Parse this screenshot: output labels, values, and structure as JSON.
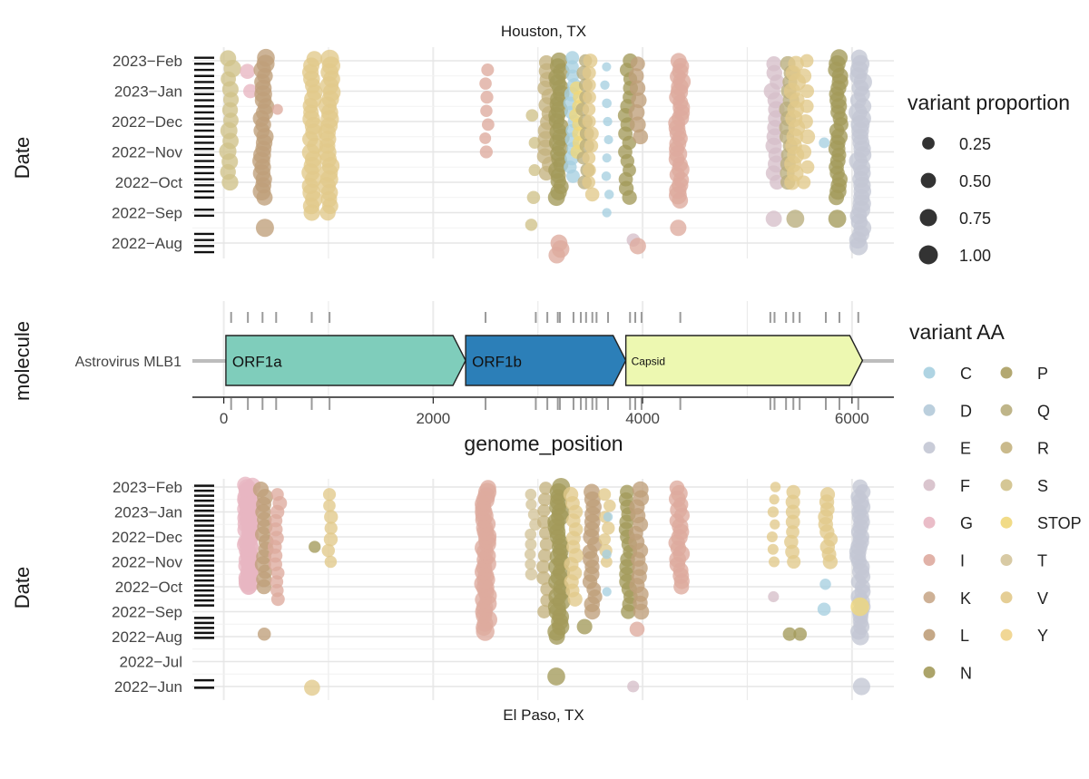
{
  "panels": [
    {
      "id": "houston",
      "title": "Houston, TX",
      "ylabel": "Date",
      "y_ticks": [
        {
          "label": "2022−Aug",
          "value": 0
        },
        {
          "label": "2022−Sep",
          "value": 1
        },
        {
          "label": "2022−Oct",
          "value": 2
        },
        {
          "label": "2022−Nov",
          "value": 3
        },
        {
          "label": "2022−Dec",
          "value": 4
        },
        {
          "label": "2023−Jan",
          "value": 5
        },
        {
          "label": "2023−Feb",
          "value": 6
        }
      ]
    },
    {
      "id": "elpaso",
      "title": "El Paso, TX",
      "ylabel": "Date",
      "y_ticks": [
        {
          "label": "2022−Jun",
          "value": 0
        },
        {
          "label": "2022−Jul",
          "value": 1
        },
        {
          "label": "2022−Aug",
          "value": 2
        },
        {
          "label": "2022−Sep",
          "value": 3
        },
        {
          "label": "2022−Oct",
          "value": 4
        },
        {
          "label": "2022−Nov",
          "value": 5
        },
        {
          "label": "2022−Dec",
          "value": 6
        },
        {
          "label": "2023−Jan",
          "value": 7
        },
        {
          "label": "2023−Feb",
          "value": 8
        }
      ]
    }
  ],
  "genome_track": {
    "ylabel": "molecule",
    "molecule": "Astrovirus MLB1",
    "xlabel": "genome_position",
    "x_ticks": [
      0,
      2000,
      4000,
      6000
    ],
    "x_range": [
      -300,
      6400
    ],
    "genes": [
      {
        "name": "ORF1a",
        "start": 20,
        "end": 2310,
        "color": "#7fcdbb"
      },
      {
        "name": "ORF1b",
        "start": 2310,
        "end": 3840,
        "color": "#2c7fb8"
      },
      {
        "name": "Capsid",
        "start": 3840,
        "end": 6100,
        "color": "#edf8b1"
      }
    ],
    "variant_positions": [
      70,
      230,
      370,
      500,
      840,
      1010,
      2500,
      2980,
      3090,
      3190,
      3210,
      3340,
      3410,
      3460,
      3520,
      3560,
      3670,
      3880,
      3930,
      3990,
      4360,
      5220,
      5260,
      5370,
      5440,
      5500,
      5750,
      5880,
      6060
    ]
  },
  "legend": {
    "size_title": "variant proportion",
    "size_items": [
      {
        "label": "0.25",
        "value": 0.25
      },
      {
        "label": "0.50",
        "value": 0.5
      },
      {
        "label": "0.75",
        "value": 0.75
      },
      {
        "label": "1.00",
        "value": 1.0
      }
    ],
    "color_title": "variant AA",
    "color_items": [
      {
        "label": "C",
        "color": "#a6cfe0"
      },
      {
        "label": "D",
        "color": "#b4cad9"
      },
      {
        "label": "E",
        "color": "#c3c6d4"
      },
      {
        "label": "F",
        "color": "#d6bfc9"
      },
      {
        "label": "G",
        "color": "#e8b6c2"
      },
      {
        "label": "I",
        "color": "#deaa9e"
      },
      {
        "label": "K",
        "color": "#c9a98b"
      },
      {
        "label": "L",
        "color": "#bf9f7a"
      },
      {
        "label": "N",
        "color": "#a39a5a"
      },
      {
        "label": "P",
        "color": "#ab9f62"
      },
      {
        "label": "Q",
        "color": "#b8ad7c"
      },
      {
        "label": "R",
        "color": "#c4b27f"
      },
      {
        "label": "S",
        "color": "#d0c189"
      },
      {
        "label": "STOP",
        "color": "#f0d77a"
      },
      {
        "label": "T",
        "color": "#d4c49a"
      },
      {
        "label": "V",
        "color": "#e2c98a"
      },
      {
        "label": "Y",
        "color": "#f0d389"
      }
    ]
  },
  "chart_data": {
    "type": "scatter",
    "title": "",
    "xlabel": "genome_position",
    "xlim": [
      -300,
      6400
    ],
    "facets": [
      {
        "name": "Houston, TX",
        "ylabel": "Date",
        "ylim": [
          -0.5,
          6.5
        ],
        "sample_dates": [
          -0.3,
          -0.1,
          0.1,
          0.3,
          0.9,
          1.1,
          1.5,
          1.7,
          1.9,
          2.1,
          2.3,
          2.5,
          2.7,
          2.9,
          3.1,
          3.3,
          3.5,
          3.7,
          3.9,
          4.1,
          4.3,
          4.5,
          4.7,
          4.9,
          5.1,
          5.3,
          5.5,
          5.7,
          5.9,
          6.1
        ],
        "columns": [
          {
            "x": 60,
            "aa": "S",
            "ymin": 2.0,
            "ymax": 6.1,
            "step": 0.34,
            "size": 0.55
          },
          {
            "x": 230,
            "aa": "G",
            "ymin": 5.0,
            "ymax": 5.7,
            "step": 0.65,
            "size": 0.4
          },
          {
            "x": 380,
            "aa": "L",
            "ymin": 1.5,
            "ymax": 6.1,
            "step": 0.2,
            "size": 0.6
          },
          {
            "x": 380,
            "aa": "L",
            "ymin": 0.5,
            "ymax": 0.5,
            "step": 1,
            "size": 0.7
          },
          {
            "x": 510,
            "aa": "I",
            "ymin": 4.4,
            "ymax": 4.4,
            "step": 1,
            "size": 0.15
          },
          {
            "x": 850,
            "aa": "V",
            "ymin": 1.0,
            "ymax": 6.1,
            "step": 0.22,
            "size": 0.6
          },
          {
            "x": 1010,
            "aa": "V",
            "ymin": 1.0,
            "ymax": 6.1,
            "step": 0.22,
            "size": 0.65
          },
          {
            "x": 2500,
            "aa": "I",
            "ymin": 3.0,
            "ymax": 5.9,
            "step": 0.45,
            "size": 0.2
          },
          {
            "x": 2960,
            "aa": "S",
            "ymin": 0.6,
            "ymax": 5.0,
            "step": 0.9,
            "size": 0.2
          },
          {
            "x": 3090,
            "aa": "R",
            "ymin": 2.3,
            "ymax": 6.1,
            "step": 0.28,
            "size": 0.5
          },
          {
            "x": 3200,
            "aa": "N",
            "ymin": 1.5,
            "ymax": 6.1,
            "step": 0.18,
            "size": 0.55
          },
          {
            "x": 3200,
            "aa": "I",
            "ymin": -0.4,
            "ymax": 0.0,
            "step": 0.2,
            "size": 0.6
          },
          {
            "x": 3330,
            "aa": "C",
            "ymin": 2.2,
            "ymax": 6.1,
            "step": 0.3,
            "size": 0.3
          },
          {
            "x": 3390,
            "aa": "STOP",
            "ymin": 3.0,
            "ymax": 5.2,
            "step": 0.3,
            "size": 0.3
          },
          {
            "x": 3450,
            "aa": "Q",
            "ymin": 2.0,
            "ymax": 6.0,
            "step": 0.4,
            "size": 0.3
          },
          {
            "x": 3510,
            "aa": "V",
            "ymin": 1.6,
            "ymax": 6.0,
            "step": 0.4,
            "size": 0.3
          },
          {
            "x": 3660,
            "aa": "C",
            "ymin": 1.0,
            "ymax": 6.1,
            "step": 0.6,
            "size": 0.05
          },
          {
            "x": 3860,
            "aa": "N",
            "ymin": 1.5,
            "ymax": 6.1,
            "step": 0.3,
            "size": 0.35
          },
          {
            "x": 3960,
            "aa": "L",
            "ymin": 3.5,
            "ymax": 6.1,
            "step": 0.4,
            "size": 0.45
          },
          {
            "x": 3910,
            "aa": "F",
            "ymin": 0.1,
            "ymax": 0.1,
            "step": 1,
            "size": 0.3
          },
          {
            "x": 3980,
            "aa": "I",
            "ymin": -0.1,
            "ymax": -0.1,
            "step": 1,
            "size": 0.45
          },
          {
            "x": 4350,
            "aa": "I",
            "ymin": 1.4,
            "ymax": 6.1,
            "step": 0.17,
            "size": 0.6
          },
          {
            "x": 4350,
            "aa": "I",
            "ymin": 0.5,
            "ymax": 0.5,
            "step": 1,
            "size": 0.45
          },
          {
            "x": 5260,
            "aa": "F",
            "ymin": 2.0,
            "ymax": 6.1,
            "step": 0.3,
            "size": 0.5
          },
          {
            "x": 5260,
            "aa": "F",
            "ymin": 0.8,
            "ymax": 0.8,
            "step": 1,
            "size": 0.6
          },
          {
            "x": 5400,
            "aa": "Q",
            "ymin": 2.0,
            "ymax": 6.1,
            "step": 0.3,
            "size": 0.45
          },
          {
            "x": 5450,
            "aa": "V",
            "ymin": 2.0,
            "ymax": 6.1,
            "step": 0.3,
            "size": 0.55
          },
          {
            "x": 5450,
            "aa": "Q",
            "ymin": 0.8,
            "ymax": 0.8,
            "step": 1,
            "size": 0.6
          },
          {
            "x": 5560,
            "aa": "V",
            "ymin": 2.0,
            "ymax": 6.0,
            "step": 0.5,
            "size": 0.35
          },
          {
            "x": 5750,
            "aa": "C",
            "ymin": 3.3,
            "ymax": 3.3,
            "step": 1,
            "size": 0.1
          },
          {
            "x": 5870,
            "aa": "N",
            "ymin": 1.5,
            "ymax": 6.1,
            "step": 0.2,
            "size": 0.5
          },
          {
            "x": 5850,
            "aa": "N",
            "ymin": 0.8,
            "ymax": 0.8,
            "step": 1,
            "size": 0.6
          },
          {
            "x": 6080,
            "aa": "E",
            "ymin": -0.1,
            "ymax": 6.1,
            "step": 0.2,
            "size": 0.7
          }
        ]
      },
      {
        "name": "El Paso, TX",
        "ylabel": "Date",
        "ylim": [
          -0.5,
          8.5
        ],
        "sample_dates": [
          -0.05,
          0.25,
          1.95,
          2.15,
          2.35,
          2.55,
          2.75,
          3.25,
          3.45,
          3.65,
          3.85,
          4.05,
          4.25,
          4.45,
          4.65,
          4.85,
          5.05,
          5.25,
          5.45,
          5.65,
          5.85,
          6.05,
          6.25,
          6.45,
          6.65,
          6.85,
          7.05,
          7.25,
          7.45,
          7.65,
          7.85,
          8.05
        ],
        "columns": [
          {
            "x": 230,
            "aa": "G",
            "ymin": 4.0,
            "ymax": 8.1,
            "step": 0.12,
            "size": 0.6
          },
          {
            "x": 250,
            "aa": "G",
            "ymin": 4.0,
            "ymax": 8.1,
            "step": 0.15,
            "size": 0.45
          },
          {
            "x": 380,
            "aa": "L",
            "ymin": 4.0,
            "ymax": 8.1,
            "step": 0.3,
            "size": 0.45
          },
          {
            "x": 380,
            "aa": "L",
            "ymin": 2.1,
            "ymax": 2.1,
            "step": 1,
            "size": 0.25
          },
          {
            "x": 510,
            "aa": "I",
            "ymin": 3.5,
            "ymax": 8.0,
            "step": 0.35,
            "size": 0.3
          },
          {
            "x": 850,
            "aa": "N",
            "ymin": 5.6,
            "ymax": 5.6,
            "step": 1,
            "size": 0.2
          },
          {
            "x": 1010,
            "aa": "V",
            "ymin": 5.0,
            "ymax": 8.1,
            "step": 0.45,
            "size": 0.25
          },
          {
            "x": 850,
            "aa": "V",
            "ymin": -0.05,
            "ymax": -0.05,
            "step": 1,
            "size": 0.45
          },
          {
            "x": 2500,
            "aa": "I",
            "ymin": 2.2,
            "ymax": 8.1,
            "step": 0.16,
            "size": 0.65
          },
          {
            "x": 2950,
            "aa": "T",
            "ymin": 4.5,
            "ymax": 8.0,
            "step": 0.4,
            "size": 0.15
          },
          {
            "x": 3070,
            "aa": "R",
            "ymin": 3.0,
            "ymax": 8.0,
            "step": 0.45,
            "size": 0.25
          },
          {
            "x": 3200,
            "aa": "N",
            "ymin": 2.0,
            "ymax": 8.0,
            "step": 0.2,
            "size": 0.6
          },
          {
            "x": 3200,
            "aa": "N",
            "ymin": 0.4,
            "ymax": 0.4,
            "step": 1,
            "size": 0.7
          },
          {
            "x": 3340,
            "aa": "V",
            "ymin": 3.5,
            "ymax": 8.0,
            "step": 0.35,
            "size": 0.35
          },
          {
            "x": 3440,
            "aa": "N",
            "ymin": 2.4,
            "ymax": 2.4,
            "step": 1,
            "size": 0.45
          },
          {
            "x": 3520,
            "aa": "L",
            "ymin": 3.0,
            "ymax": 8.0,
            "step": 0.3,
            "size": 0.45
          },
          {
            "x": 3660,
            "aa": "V",
            "ymin": 5.0,
            "ymax": 8.0,
            "step": 0.45,
            "size": 0.2
          },
          {
            "x": 3660,
            "aa": "C",
            "ymin": 3.8,
            "ymax": 7.0,
            "step": 1.5,
            "size": 0.05
          },
          {
            "x": 3860,
            "aa": "N",
            "ymin": 3.0,
            "ymax": 8.0,
            "step": 0.3,
            "size": 0.4
          },
          {
            "x": 3960,
            "aa": "L",
            "ymin": 3.0,
            "ymax": 8.0,
            "step": 0.35,
            "size": 0.45
          },
          {
            "x": 3950,
            "aa": "I",
            "ymin": 2.3,
            "ymax": 2.3,
            "step": 1,
            "size": 0.35
          },
          {
            "x": 3910,
            "aa": "F",
            "ymin": 0.0,
            "ymax": 0.0,
            "step": 1,
            "size": 0.15
          },
          {
            "x": 4350,
            "aa": "I",
            "ymin": 4.0,
            "ymax": 8.0,
            "step": 0.22,
            "size": 0.5
          },
          {
            "x": 5250,
            "aa": "V",
            "ymin": 5.0,
            "ymax": 8.0,
            "step": 0.5,
            "size": 0.1
          },
          {
            "x": 5230,
            "aa": "F",
            "ymin": 3.6,
            "ymax": 3.6,
            "step": 1,
            "size": 0.1
          },
          {
            "x": 5440,
            "aa": "V",
            "ymin": 5.0,
            "ymax": 8.0,
            "step": 0.4,
            "size": 0.3
          },
          {
            "x": 5420,
            "aa": "N",
            "ymin": 2.1,
            "ymax": 2.1,
            "step": 1,
            "size": 0.25
          },
          {
            "x": 5480,
            "aa": "N",
            "ymin": 2.1,
            "ymax": 2.1,
            "step": 1,
            "size": 0.25
          },
          {
            "x": 5770,
            "aa": "V",
            "ymin": 5.0,
            "ymax": 7.8,
            "step": 0.3,
            "size": 0.35
          },
          {
            "x": 5760,
            "aa": "C",
            "ymin": 4.1,
            "ymax": 4.1,
            "step": 1,
            "size": 0.15
          },
          {
            "x": 5740,
            "aa": "C",
            "ymin": 3.1,
            "ymax": 3.1,
            "step": 1,
            "size": 0.3
          },
          {
            "x": 6080,
            "aa": "E",
            "ymin": 2.0,
            "ymax": 8.0,
            "step": 0.2,
            "size": 0.55
          },
          {
            "x": 6080,
            "aa": "STOP",
            "ymin": 3.2,
            "ymax": 3.2,
            "step": 1,
            "size": 0.7
          },
          {
            "x": 6080,
            "aa": "E",
            "ymin": 0.0,
            "ymax": 0.0,
            "step": 1,
            "size": 0.7
          }
        ]
      }
    ]
  }
}
